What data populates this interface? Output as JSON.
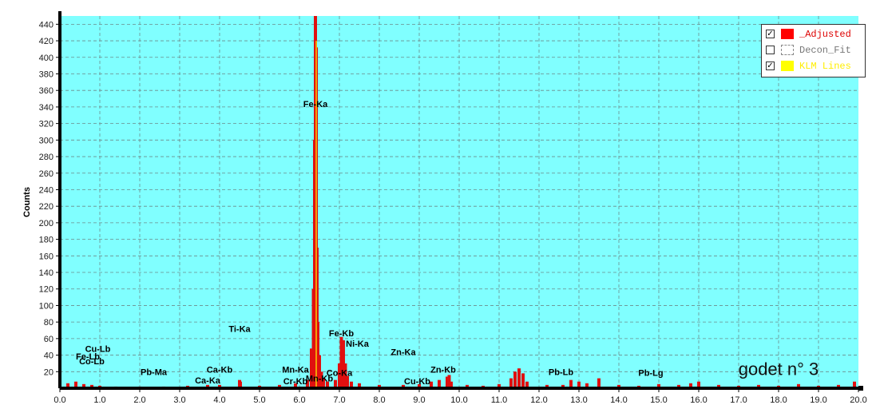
{
  "chart_data": {
    "type": "bar",
    "ylabel": "Counts",
    "xlim": [
      0.0,
      20.0
    ],
    "ylim": [
      0,
      450
    ],
    "x_ticks": [
      "0.0",
      "1.0",
      "2.0",
      "3.0",
      "4.0",
      "5.0",
      "6.0",
      "7.0",
      "8.0",
      "9.0",
      "10.0",
      "11.0",
      "12.0",
      "13.0",
      "14.0",
      "15.0",
      "16.0",
      "17.0",
      "18.0",
      "19.0",
      "20.0"
    ],
    "y_ticks": [
      "20",
      "40",
      "60",
      "80",
      "100",
      "120",
      "140",
      "160",
      "180",
      "200",
      "220",
      "240",
      "260",
      "280",
      "300",
      "320",
      "340",
      "360",
      "380",
      "400",
      "420",
      "440"
    ],
    "grid": true,
    "background": "#80ffff",
    "series": [
      {
        "name": "_Adjusted",
        "color": "#e01010",
        "x": [
          0.2,
          0.4,
          0.6,
          0.8,
          1.0,
          1.4,
          2.0,
          2.6,
          3.2,
          3.7,
          4.0,
          4.5,
          4.52,
          5.0,
          5.5,
          5.9,
          6.2,
          6.3,
          6.35,
          6.38,
          6.4,
          6.42,
          6.44,
          6.46,
          6.5,
          6.55,
          6.6,
          6.7,
          6.9,
          7.0,
          7.05,
          7.1,
          7.15,
          7.2,
          7.3,
          7.5,
          8.0,
          8.6,
          9.0,
          9.3,
          9.5,
          9.7,
          9.75,
          9.8,
          10.2,
          10.6,
          11.0,
          11.3,
          11.4,
          11.5,
          11.6,
          11.7,
          12.2,
          12.6,
          12.8,
          13.0,
          13.2,
          13.5,
          14.0,
          14.5,
          15.0,
          15.5,
          15.8,
          16.0,
          16.5,
          17.0,
          17.5,
          18.0,
          18.5,
          19.0,
          19.5,
          19.9
        ],
        "values": [
          6,
          8,
          5,
          4,
          3,
          2,
          2,
          2,
          3,
          4,
          4,
          10,
          8,
          3,
          4,
          6,
          10,
          48,
          120,
          300,
          450,
          412,
          170,
          80,
          40,
          20,
          12,
          8,
          10,
          30,
          62,
          58,
          30,
          15,
          8,
          6,
          4,
          4,
          5,
          8,
          10,
          14,
          16,
          8,
          4,
          3,
          5,
          12,
          20,
          24,
          18,
          8,
          4,
          4,
          10,
          8,
          6,
          12,
          4,
          3,
          5,
          4,
          6,
          8,
          4,
          3,
          4,
          3,
          5,
          3,
          4,
          8
        ]
      }
    ],
    "legend": {
      "position": "top-right",
      "items": [
        {
          "label": "_Adjusted",
          "checked": true,
          "color": "#ff0000",
          "text_color": "#dd0000"
        },
        {
          "label": "Decon_Fit",
          "checked": false,
          "color": "#ffffff",
          "text_color": "#777777"
        },
        {
          "label": "KLM Lines",
          "checked": true,
          "color": "#ffff00",
          "text_color": "#ffee00"
        }
      ]
    },
    "element_labels": [
      {
        "text": "Fe-Ka",
        "x": 6.4,
        "y": 340
      },
      {
        "text": "Ti-Ka",
        "x": 4.5,
        "y": 68
      },
      {
        "text": "Fe-Kb",
        "x": 7.05,
        "y": 63
      },
      {
        "text": "Ni-Ka",
        "x": 7.45,
        "y": 50
      },
      {
        "text": "Zn-Ka",
        "x": 8.6,
        "y": 40
      },
      {
        "text": "Cu-Lb",
        "x": 0.95,
        "y": 44
      },
      {
        "text": "Fe-Lb",
        "x": 0.7,
        "y": 35
      },
      {
        "text": "Co-Lb",
        "x": 0.8,
        "y": 29
      },
      {
        "text": "Pb-Ma",
        "x": 2.35,
        "y": 16
      },
      {
        "text": "Ca-Kb",
        "x": 4.0,
        "y": 19
      },
      {
        "text": "Ca-Ka",
        "x": 3.7,
        "y": 6
      },
      {
        "text": "Mn-Ka",
        "x": 5.9,
        "y": 19
      },
      {
        "text": "Mn-Kb",
        "x": 6.5,
        "y": 8
      },
      {
        "text": "Co-Ka",
        "x": 7.0,
        "y": 15
      },
      {
        "text": "Cr-Kb",
        "x": 5.9,
        "y": 5
      },
      {
        "text": "Cu-Kb",
        "x": 8.95,
        "y": 5
      },
      {
        "text": "Zn-Kb",
        "x": 9.6,
        "y": 19
      },
      {
        "text": "Pb-Lb",
        "x": 12.55,
        "y": 16
      },
      {
        "text": "Pb-Lg",
        "x": 14.8,
        "y": 15
      }
    ],
    "annotation": "godet n° 3"
  }
}
